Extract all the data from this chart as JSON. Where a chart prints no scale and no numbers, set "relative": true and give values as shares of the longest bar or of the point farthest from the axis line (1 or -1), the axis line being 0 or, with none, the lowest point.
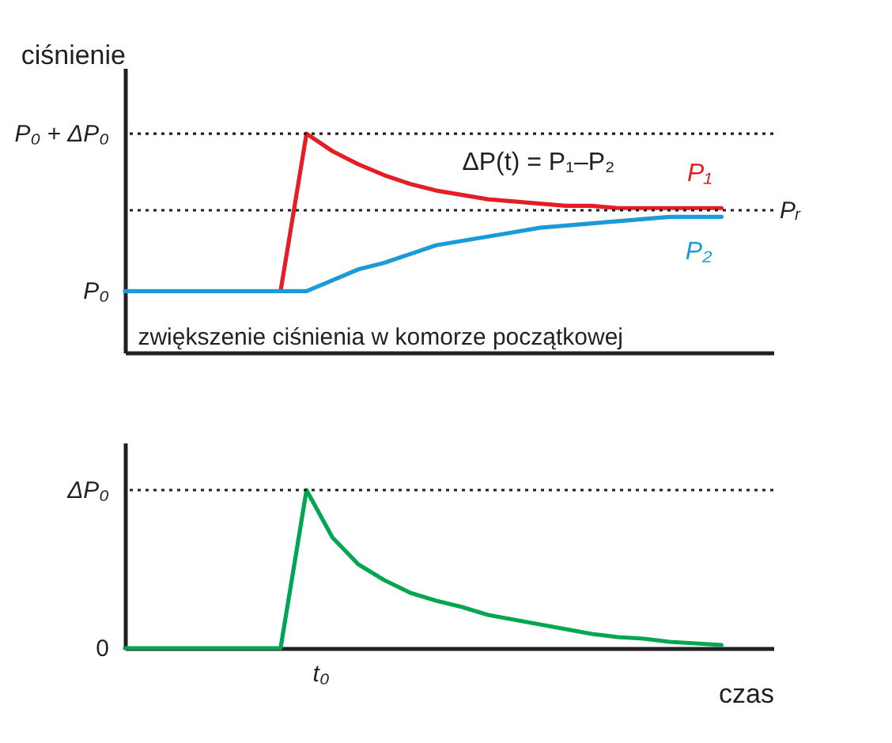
{
  "chart_data": [
    {
      "type": "line",
      "relative": true,
      "ylabel": "ciśnienie",
      "grid": false,
      "line_style": "solid",
      "categories": [
        null,
        null,
        null,
        null,
        null,
        null,
        null,
        null,
        null,
        null,
        null,
        null,
        null,
        null,
        null,
        null,
        null,
        null,
        null,
        null,
        null,
        null,
        null,
        null
      ],
      "series": [
        {
          "name": "P₁",
          "color": "#e31e24",
          "values": [
            null,
            null,
            null,
            null,
            null,
            null,
            0.28,
            1,
            0.92,
            0.86,
            0.81,
            0.77,
            0.74,
            0.72,
            0.7,
            0.69,
            0.68,
            0.67,
            0.67,
            0.66,
            0.66,
            0.66,
            0.66,
            0.66
          ]
        },
        {
          "name": "P₂",
          "color": "#1a9ad9",
          "values": [
            0.28,
            0.28,
            0.28,
            0.28,
            0.28,
            0.28,
            0.28,
            0.28,
            0.33,
            0.38,
            0.41,
            0.45,
            0.49,
            0.51,
            0.53,
            0.55,
            0.57,
            0.58,
            0.59,
            0.6,
            0.61,
            0.62,
            0.62,
            0.62
          ]
        }
      ],
      "ref_lines": [
        {
          "axis": "y",
          "value": 1,
          "label": "P₀ + ΔP₀",
          "line_style": "dotted"
        },
        {
          "axis": "y",
          "value": 0.65,
          "label": "Pᵣ",
          "line_style": "dotted"
        }
      ],
      "annotations": [
        "ΔP(t) = P₁–P₂",
        "zwiększenie ciśnienia w komorze początkowej",
        "P₀"
      ]
    },
    {
      "type": "line",
      "relative": true,
      "xlabel": "czas",
      "grid": false,
      "line_style": "solid",
      "categories": [
        null,
        null,
        null,
        null,
        null,
        null,
        null,
        null,
        null,
        null,
        null,
        null,
        null,
        null,
        null,
        null,
        null,
        null,
        null,
        null,
        null,
        null,
        null,
        null
      ],
      "series": [
        {
          "color": "#00a651",
          "values": [
            0,
            0,
            0,
            0,
            0,
            0,
            0,
            1,
            0.7,
            0.53,
            0.43,
            0.35,
            0.3,
            0.26,
            0.21,
            0.18,
            0.15,
            0.12,
            0.09,
            0.07,
            0.06,
            0.04,
            0.03,
            0.02
          ]
        }
      ],
      "ref_lines": [
        {
          "axis": "y",
          "value": 1,
          "label": "ΔP₀",
          "line_style": "dotted"
        }
      ],
      "annotations": [
        "t₀",
        "0"
      ]
    }
  ]
}
